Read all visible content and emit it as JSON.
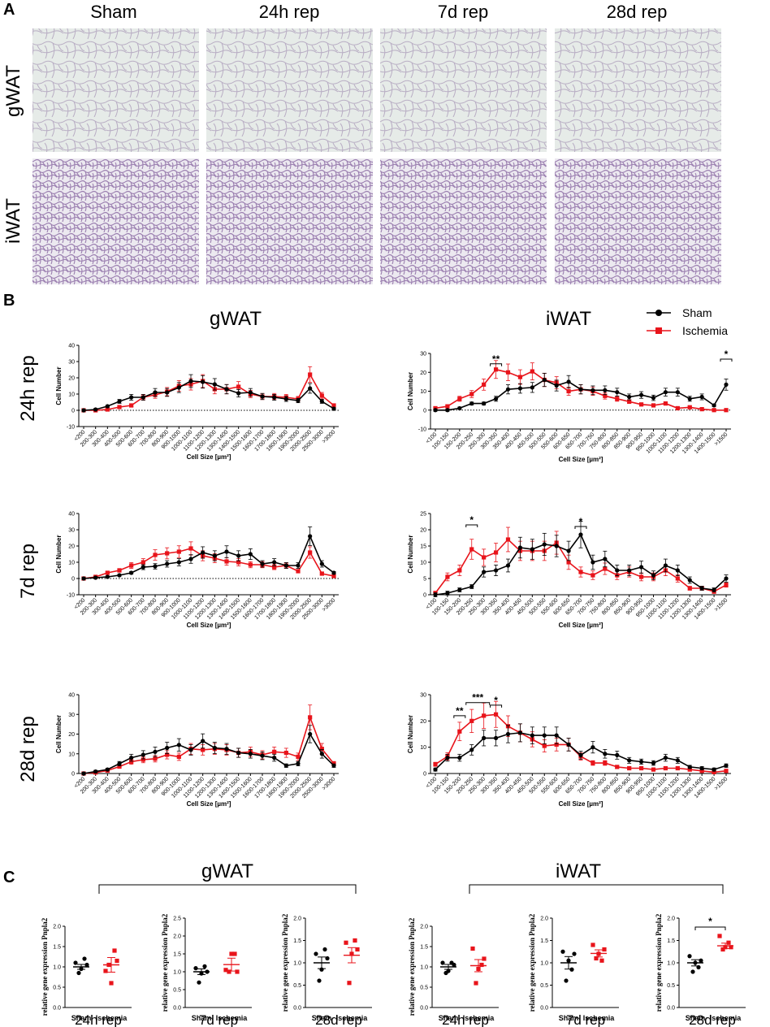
{
  "panels": {
    "A": "A",
    "B": "B",
    "C": "C"
  },
  "panel_a": {
    "columns": [
      "Sham",
      "24h rep",
      "7d rep",
      "28d rep"
    ],
    "rows": [
      "gWAT",
      "iWAT"
    ]
  },
  "panel_b": {
    "col_headers": [
      "gWAT",
      "iWAT"
    ],
    "row_labels": [
      "24h rep",
      "7d rep",
      "28d rep"
    ],
    "legend": [
      {
        "name": "Sham",
        "color": "#000000"
      },
      {
        "name": "Ischemia",
        "color": "#e8141b"
      }
    ],
    "xlabel": "Cell Size [µm²]",
    "ylabel": "Cell Number"
  },
  "panel_c": {
    "group_labels": [
      "gWAT",
      "iWAT"
    ],
    "ylabel": "relative gene expression Pnpla2",
    "categories": [
      "Sham",
      "Ischemia"
    ],
    "timepoints": [
      "24h rep",
      "7d rep",
      "28d rep",
      "24h rep",
      "7d rep",
      "28d rep"
    ]
  },
  "chart_data": [
    {
      "type": "line",
      "id": "g24",
      "title": "gWAT 24h rep",
      "xlabel": "Cell Size [µm²]",
      "ylabel": "Cell Number",
      "ylim": [
        -10,
        40
      ],
      "yticks": [
        "-10",
        "0",
        "10",
        "20",
        "30",
        "40"
      ],
      "categories": [
        "<200",
        "200-300",
        "300-400",
        "400-500",
        "500-600",
        "600-700",
        "700-800",
        "800-900",
        "900-1000",
        "1000-1100",
        "1100-1200",
        "1200-1300",
        "1300-1400",
        "1400-1500",
        "1500-1600",
        "1600-1700",
        "1700-1800",
        "1800-1900",
        "1900-2000",
        "2000-2500",
        "2500-3000",
        ">3000"
      ],
      "series": [
        {
          "name": "Sham",
          "values": [
            0,
            0.5,
            2.5,
            5.5,
            8,
            8,
            11,
            11,
            14,
            18,
            17.5,
            16,
            13,
            10.5,
            11,
            8.5,
            8,
            7,
            6,
            13.5,
            5.5,
            1
          ]
        },
        {
          "name": "Ischemia",
          "values": [
            0,
            0,
            0.5,
            2,
            3,
            8,
            9.5,
            11.5,
            15,
            16,
            18,
            13,
            13,
            14.5,
            10,
            8.5,
            8.5,
            8,
            7,
            22,
            9,
            3
          ]
        }
      ],
      "annotations": []
    },
    {
      "type": "line",
      "id": "i24",
      "title": "iWAT 24h rep",
      "xlabel": "Cell Size [µm²]",
      "ylabel": "Cell Number",
      "ylim": [
        -10,
        30
      ],
      "yticks": [
        "-10",
        "0",
        "10",
        "20",
        "30"
      ],
      "categories": [
        "<100",
        "100-150",
        "150-200",
        "200-250",
        "250-300",
        "300-350",
        "350-400",
        "400-450",
        "450-500",
        "500-550",
        "550-600",
        "600-650",
        "650-700",
        "700-750",
        "750-800",
        "800-850",
        "850-900",
        "900-950",
        "950-1000",
        "1000-1100",
        "1100-1200",
        "1200-1300",
        "1300-1400",
        "1400-1500",
        ">1500"
      ],
      "series": [
        {
          "name": "Sham",
          "values": [
            0,
            0,
            1,
            3.5,
            3.5,
            6,
            11,
            11.5,
            12,
            16,
            13,
            15,
            11,
            10.5,
            10.5,
            9.5,
            7,
            8,
            6.5,
            9.5,
            9.5,
            6,
            7,
            2.5,
            13.5
          ]
        },
        {
          "name": "Ischemia",
          "values": [
            1,
            2,
            6,
            8.5,
            13.5,
            21.5,
            20,
            17.5,
            20.5,
            16,
            14.5,
            10,
            11,
            10,
            7.5,
            6,
            4.5,
            3,
            2.5,
            3.5,
            1,
            1.5,
            0.5,
            0,
            0
          ]
        }
      ],
      "annotations": [
        "**",
        "*"
      ]
    },
    {
      "type": "line",
      "id": "g7",
      "title": "gWAT 7d rep",
      "xlabel": "Cell Size [µm²]",
      "ylabel": "Cell Number",
      "ylim": [
        -10,
        40
      ],
      "yticks": [
        "-10",
        "0",
        "10",
        "20",
        "30",
        "40"
      ],
      "categories": [
        "<200",
        "200-300",
        "300-400",
        "400-500",
        "500-600",
        "600-700",
        "700-800",
        "800-900",
        "900-1000",
        "1000-1100",
        "1100-1200",
        "1200-1300",
        "1300-1400",
        "1400-1500",
        "1500-1600",
        "1600-1700",
        "1700-1800",
        "1800-1900",
        "1900-2000",
        "2000-2500",
        "2500-3000",
        ">3000"
      ],
      "series": [
        {
          "name": "Sham",
          "values": [
            0,
            0.5,
            1,
            2,
            3.5,
            7,
            7.5,
            9,
            10,
            12,
            16,
            14,
            16.5,
            14,
            15,
            9,
            10,
            8,
            8,
            26,
            9,
            3.5
          ]
        },
        {
          "name": "Ischemia",
          "values": [
            0,
            1,
            3.5,
            5,
            8,
            10,
            14.5,
            15.5,
            16.5,
            18.5,
            14,
            12.5,
            10.5,
            10,
            8.5,
            8.5,
            7,
            8,
            4.5,
            16,
            3,
            1.5
          ]
        }
      ],
      "annotations": []
    },
    {
      "type": "line",
      "id": "i7",
      "title": "iWAT 7d rep",
      "xlabel": "Cell Size [µm²]",
      "ylabel": "Cell Number",
      "ylim": [
        0,
        25
      ],
      "yticks": [
        "0",
        "5",
        "10",
        "15",
        "20",
        "25"
      ],
      "categories": [
        "<100",
        "100-150",
        "150-200",
        "200-250",
        "250-300",
        "300-350",
        "350-400",
        "400-450",
        "450-500",
        "500-550",
        "550-600",
        "600-650",
        "650-700",
        "700-750",
        "750-800",
        "800-850",
        "850-900",
        "900-950",
        "950-1000",
        "1000-1100",
        "1100-1200",
        "1200-1300",
        "1300-1400",
        "1400-1500",
        ">1500"
      ],
      "series": [
        {
          "name": "Sham",
          "values": [
            0,
            0.5,
            1.5,
            2.5,
            7,
            7.5,
            9,
            14.5,
            14,
            15.5,
            15,
            13.5,
            18.5,
            10,
            11,
            7.5,
            7.5,
            8.5,
            6,
            9,
            7.5,
            4.5,
            2,
            1.5,
            5
          ]
        },
        {
          "name": "Ischemia",
          "values": [
            0.5,
            5.5,
            7.5,
            14,
            11.5,
            13,
            17,
            13.5,
            13.5,
            13.5,
            16,
            10,
            7,
            6,
            8,
            6,
            7,
            5.5,
            5.5,
            7.5,
            5,
            2,
            2,
            1,
            3
          ]
        }
      ],
      "annotations": [
        "*",
        "*"
      ]
    },
    {
      "type": "line",
      "id": "g28",
      "title": "gWAT 28d rep",
      "xlabel": "Cell Size [µm²]",
      "ylabel": "Cell Number",
      "ylim": [
        0,
        40
      ],
      "yticks": [
        "0",
        "10",
        "20",
        "30",
        "40"
      ],
      "categories": [
        "<200",
        "200-300",
        "300-400",
        "400-500",
        "500-600",
        "600-700",
        "700-800",
        "800-900",
        "900-1000",
        "1000-1100",
        "1100-1200",
        "1200-1300",
        "1300-1400",
        "1400-1500",
        "1500-1600",
        "1600-1700",
        "1700-1800",
        "1800-1900",
        "1900-2000",
        "2000-2500",
        "2500-3000",
        ">3000"
      ],
      "series": [
        {
          "name": "Sham",
          "values": [
            0,
            1,
            2,
            5,
            8,
            9.5,
            11,
            13,
            14.5,
            12,
            16.5,
            13,
            12.5,
            10.5,
            10,
            9,
            8,
            4,
            5,
            20,
            10,
            4
          ]
        },
        {
          "name": "Ischemia",
          "values": [
            0,
            0.5,
            1.5,
            3.5,
            6,
            7,
            7.5,
            9.5,
            8.5,
            12.5,
            12,
            12.5,
            12,
            10.5,
            11,
            9.5,
            11,
            10.5,
            8.5,
            28.5,
            12.5,
            5
          ]
        }
      ],
      "annotations": []
    },
    {
      "type": "line",
      "id": "i28",
      "title": "iWAT 28d rep",
      "xlabel": "Cell Size [µm²]",
      "ylabel": "Cell Number",
      "ylim": [
        0,
        30
      ],
      "yticks": [
        "0",
        "10",
        "20",
        "30"
      ],
      "categories": [
        "<100",
        "100-150",
        "150-200",
        "200-250",
        "250-300",
        "300-350",
        "350-400",
        "400-450",
        "450-500",
        "500-550",
        "550-600",
        "600-650",
        "650-700",
        "700-750",
        "750-800",
        "800-850",
        "850-900",
        "900-950",
        "950-1000",
        "1000-1100",
        "1100-1200",
        "1200-1300",
        "1300-1400",
        "1400-1500",
        ">1500"
      ],
      "series": [
        {
          "name": "Sham",
          "values": [
            1.5,
            6,
            6,
            9,
            13.5,
            13.5,
            15,
            15.5,
            14.5,
            14.5,
            14.5,
            11,
            7,
            10,
            7.5,
            7,
            5,
            4.5,
            4,
            6,
            5,
            2.5,
            2,
            1.5,
            3
          ]
        },
        {
          "name": "Ischemia",
          "values": [
            3.5,
            6.5,
            16,
            20,
            22,
            22.5,
            18,
            15.5,
            13,
            10.5,
            11,
            11,
            6.5,
            4,
            4,
            2.5,
            2,
            2,
            1.5,
            2,
            2,
            1.5,
            1,
            0.5,
            1
          ]
        }
      ],
      "annotations": [
        "**",
        "***",
        "*"
      ]
    },
    {
      "type": "scatter",
      "id": "c1",
      "title": "gWAT 24h rep",
      "ylabel": "relative gene expression Pnpla2",
      "ylim": [
        0,
        2.0
      ],
      "yticks": [
        "0.0",
        "0.5",
        "1.0",
        "1.5",
        "2.0"
      ],
      "categories": [
        "Sham",
        "Ischemia"
      ],
      "series": [
        {
          "name": "Sham",
          "values": [
            1.1,
            1.05,
            0.95,
            0.85,
            1.2
          ],
          "mean": 1.0,
          "sem": 0.06
        },
        {
          "name": "Ischemia",
          "values": [
            0.9,
            1.15,
            0.6,
            1.05,
            1.4
          ],
          "mean": 1.05,
          "sem": 0.18
        }
      ],
      "annotations": []
    },
    {
      "type": "scatter",
      "id": "c2",
      "title": "gWAT 7d rep",
      "ylabel": "relative gene expression Pnpla2",
      "ylim": [
        0,
        2.5
      ],
      "yticks": [
        "0.0",
        "0.5",
        "1.0",
        "1.5",
        "2.0",
        "2.5"
      ],
      "categories": [
        "Sham",
        "Ischemia"
      ],
      "series": [
        {
          "name": "Sham",
          "values": [
            1.1,
            1.0,
            0.95,
            0.7,
            1.15
          ],
          "mean": 1.0,
          "sem": 0.08
        },
        {
          "name": "Ischemia",
          "values": [
            1.05,
            1.0,
            1.5,
            1.0,
            1.5
          ],
          "mean": 1.2,
          "sem": 0.18
        }
      ],
      "annotations": []
    },
    {
      "type": "scatter",
      "id": "c3",
      "title": "gWAT 28d rep",
      "ylabel": "relative gene expression Pnpla2",
      "ylim": [
        0,
        2.0
      ],
      "yticks": [
        "0.0",
        "0.5",
        "1.0",
        "1.5",
        "2.0"
      ],
      "categories": [
        "Sham",
        "Ischemia"
      ],
      "series": [
        {
          "name": "Sham",
          "values": [
            1.2,
            1.1,
            0.85,
            0.6,
            1.3
          ],
          "mean": 1.0,
          "sem": 0.13
        },
        {
          "name": "Ischemia",
          "values": [
            1.45,
            1.3,
            1.2,
            0.55,
            1.5
          ],
          "mean": 1.17,
          "sem": 0.17
        }
      ],
      "annotations": []
    },
    {
      "type": "scatter",
      "id": "c4",
      "title": "iWAT 24h rep",
      "ylabel": "relative gene expression Pnpla2",
      "ylim": [
        0,
        2.0
      ],
      "yticks": [
        "0.0",
        "0.5",
        "1.0",
        "1.5",
        "2.0"
      ],
      "categories": [
        "Sham",
        "Ischemia"
      ],
      "series": [
        {
          "name": "Sham",
          "values": [
            1.1,
            1.05,
            0.9,
            0.85,
            1.1
          ],
          "mean": 1.0,
          "sem": 0.06
        },
        {
          "name": "Ischemia",
          "values": [
            1.45,
            1.2,
            0.95,
            0.6,
            1.05
          ],
          "mean": 1.03,
          "sem": 0.15
        }
      ],
      "annotations": []
    },
    {
      "type": "scatter",
      "id": "c5",
      "title": "iWAT 7d rep",
      "ylabel": "relative gene expression Pnpla2",
      "ylim": [
        0,
        2.0
      ],
      "yticks": [
        "0.0",
        "0.5",
        "1.0",
        "1.5",
        "2.0"
      ],
      "categories": [
        "Sham",
        "Ischemia"
      ],
      "series": [
        {
          "name": "Sham",
          "values": [
            1.25,
            1.2,
            1.05,
            0.6,
            0.85
          ],
          "mean": 1.0,
          "sem": 0.14
        },
        {
          "name": "Ischemia",
          "values": [
            1.4,
            1.3,
            1.2,
            1.1,
            1.05
          ],
          "mean": 1.21,
          "sem": 0.08
        }
      ],
      "annotations": []
    },
    {
      "type": "scatter",
      "id": "c6",
      "title": "iWAT 28d rep",
      "ylabel": "relative gene expression Pnpla2",
      "ylim": [
        0,
        2.0
      ],
      "yticks": [
        "0.0",
        "0.5",
        "1.0",
        "1.5",
        "2.0"
      ],
      "categories": [
        "Sham",
        "Ischemia"
      ],
      "series": [
        {
          "name": "Sham",
          "values": [
            1.15,
            1.05,
            1.0,
            0.8,
            0.9
          ],
          "mean": 1.0,
          "sem": 0.07
        },
        {
          "name": "Ischemia",
          "values": [
            1.6,
            1.35,
            1.35,
            1.3,
            1.45
          ],
          "mean": 1.38,
          "sem": 0.06
        }
      ],
      "annotations": [
        "*"
      ]
    }
  ]
}
